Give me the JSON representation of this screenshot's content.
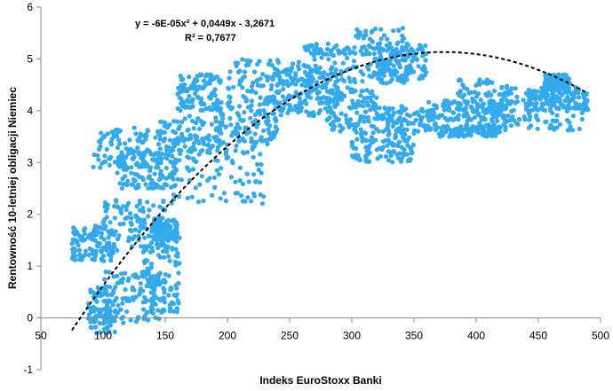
{
  "chart_data": {
    "type": "scatter",
    "xlabel": "Indeks EuroStoxx Banki",
    "ylabel": "Rentowność 10-letniej obligacji Niemiec",
    "xlim": [
      50,
      500
    ],
    "ylim": [
      -1,
      6
    ],
    "x_ticks": [
      "50",
      "100",
      "150",
      "200",
      "250",
      "300",
      "350",
      "400",
      "450",
      "500"
    ],
    "y_ticks": [
      "-1",
      "0",
      "1",
      "2",
      "3",
      "4",
      "5",
      "6"
    ],
    "grid": false,
    "legend": "none",
    "marker_color": "#33aaee",
    "trend_color": "#000000",
    "trendline": {
      "kind": "polynomial-2",
      "a": -6e-05,
      "b": 0.0449,
      "c": -3.2671,
      "x_range": [
        75,
        490
      ],
      "equation_label": "y = -6E-05x² + 0,0449x - 3,2671",
      "r2_label": "R² = 0,7677"
    },
    "clusters": [
      {
        "x": [
          88,
          110
        ],
        "y": [
          -0.3,
          0.6
        ]
      },
      {
        "x": [
          100,
          150
        ],
        "y": [
          -0.1,
          0.9
        ]
      },
      {
        "x": [
          130,
          162
        ],
        "y": [
          0.1,
          1.6
        ]
      },
      {
        "x": [
          75,
          110
        ],
        "y": [
          1.1,
          1.8
        ]
      },
      {
        "x": [
          100,
          150
        ],
        "y": [
          1.3,
          2.3
        ]
      },
      {
        "x": [
          140,
          160
        ],
        "y": [
          1.5,
          1.9
        ]
      },
      {
        "x": [
          92,
          145
        ],
        "y": [
          2.9,
          3.7
        ]
      },
      {
        "x": [
          110,
          160
        ],
        "y": [
          2.5,
          3.1
        ]
      },
      {
        "x": [
          145,
          200
        ],
        "y": [
          3.0,
          3.9
        ]
      },
      {
        "x": [
          160,
          195
        ],
        "y": [
          4.0,
          4.7
        ]
      },
      {
        "x": [
          150,
          230
        ],
        "y": [
          2.2,
          3.5
        ]
      },
      {
        "x": [
          190,
          240
        ],
        "y": [
          3.3,
          4.3
        ]
      },
      {
        "x": [
          200,
          260
        ],
        "y": [
          4.0,
          5.0
        ]
      },
      {
        "x": [
          240,
          290
        ],
        "y": [
          3.9,
          4.8
        ]
      },
      {
        "x": [
          260,
          300
        ],
        "y": [
          4.2,
          5.3
        ]
      },
      {
        "x": [
          280,
          320
        ],
        "y": [
          3.6,
          4.4
        ]
      },
      {
        "x": [
          300,
          345
        ],
        "y": [
          4.5,
          5.6
        ]
      },
      {
        "x": [
          320,
          360
        ],
        "y": [
          4.6,
          5.3
        ]
      },
      {
        "x": [
          300,
          350
        ],
        "y": [
          3.0,
          3.6
        ]
      },
      {
        "x": [
          320,
          370
        ],
        "y": [
          3.6,
          4.1
        ]
      },
      {
        "x": [
          360,
          420
        ],
        "y": [
          3.8,
          4.2
        ]
      },
      {
        "x": [
          370,
          420
        ],
        "y": [
          3.5,
          3.7
        ]
      },
      {
        "x": [
          385,
          430
        ],
        "y": [
          3.6,
          4.6
        ]
      },
      {
        "x": [
          420,
          490
        ],
        "y": [
          3.6,
          4.5
        ]
      },
      {
        "x": [
          440,
          490
        ],
        "y": [
          4.0,
          4.4
        ]
      },
      {
        "x": [
          455,
          475
        ],
        "y": [
          4.4,
          4.7
        ]
      }
    ],
    "points_per_cluster": 110
  }
}
